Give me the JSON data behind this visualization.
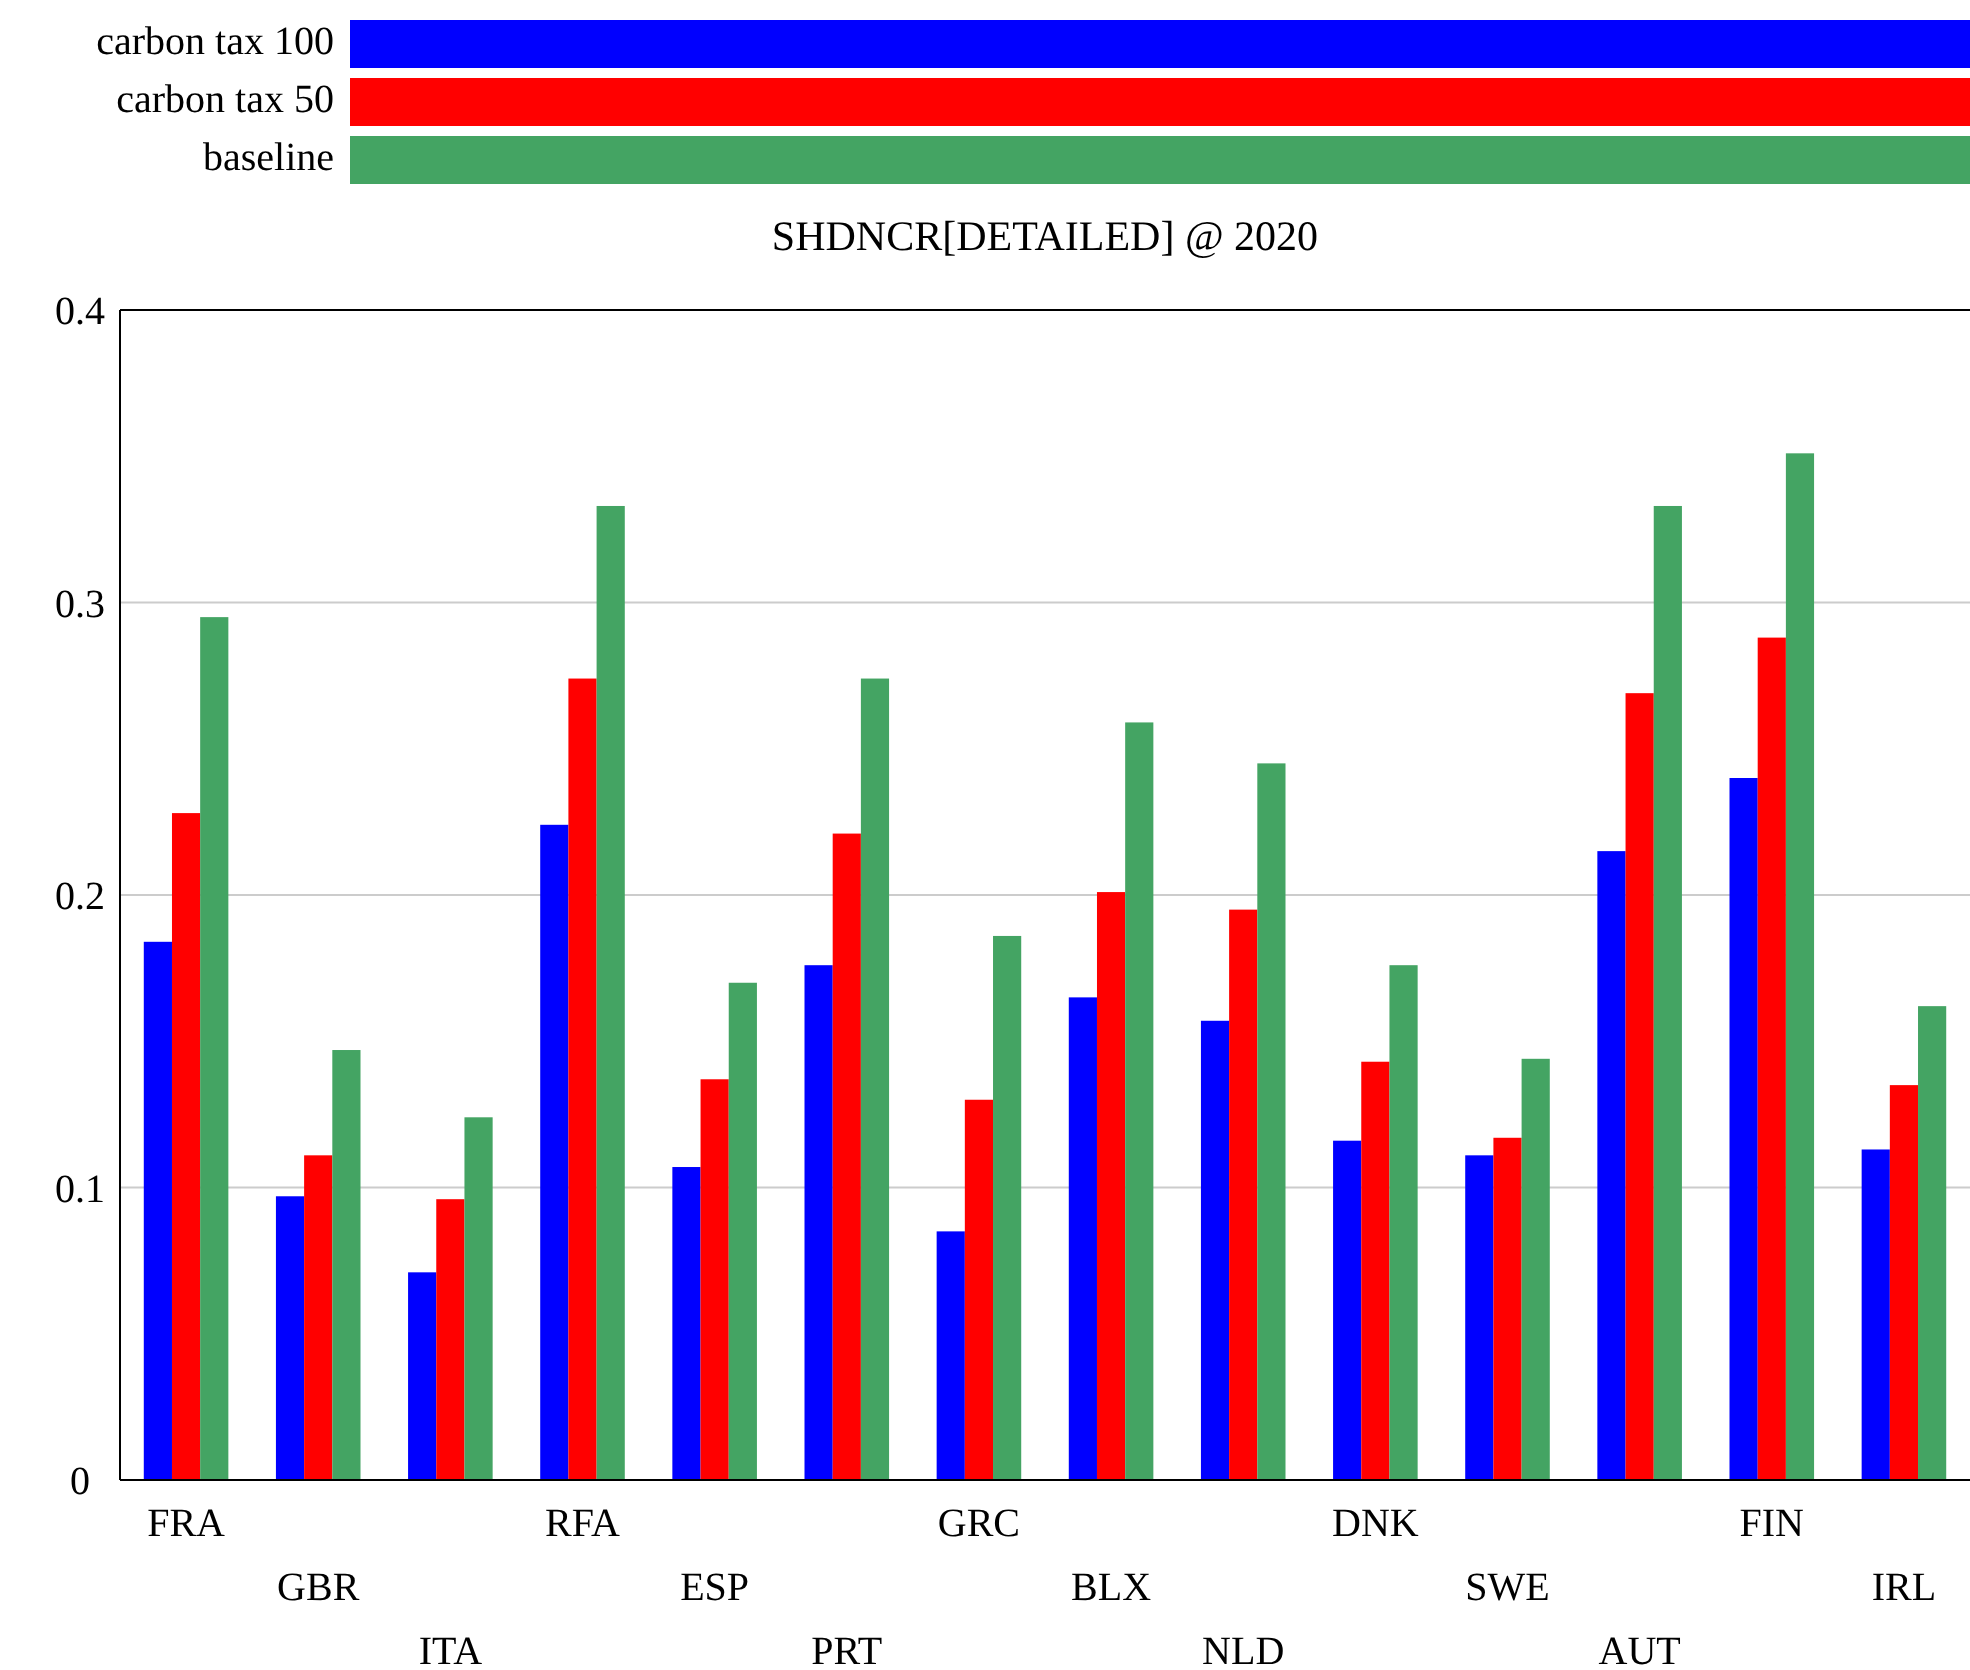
{
  "chart_data": {
    "type": "bar",
    "title": "SHDNCR[DETAILED] @ 2020",
    "categories": [
      "FRA",
      "GBR",
      "ITA",
      "RFA",
      "ESP",
      "PRT",
      "GRC",
      "BLX",
      "NLD",
      "DNK",
      "SWE",
      "AUT",
      "FIN",
      "IRL"
    ],
    "series": [
      {
        "name": "carbon tax 100",
        "color": "#0000ff",
        "values": [
          0.184,
          0.097,
          0.071,
          0.224,
          0.107,
          0.176,
          0.085,
          0.165,
          0.157,
          0.116,
          0.111,
          0.215,
          0.24,
          0.113
        ]
      },
      {
        "name": "carbon tax 50",
        "color": "#ff0000",
        "values": [
          0.228,
          0.111,
          0.096,
          0.274,
          0.137,
          0.221,
          0.13,
          0.201,
          0.195,
          0.143,
          0.117,
          0.269,
          0.288,
          0.135
        ]
      },
      {
        "name": "baseline",
        "color": "#44a463",
        "values": [
          0.295,
          0.147,
          0.124,
          0.333,
          0.17,
          0.274,
          0.186,
          0.259,
          0.245,
          0.176,
          0.144,
          0.333,
          0.351,
          0.162
        ]
      }
    ],
    "ylim": [
      0,
      0.4
    ],
    "yticks": [
      {
        "value": 0,
        "label": "0"
      },
      0.1,
      0.2,
      0.3,
      0.4
    ],
    "grid": "y",
    "legend": "top"
  }
}
